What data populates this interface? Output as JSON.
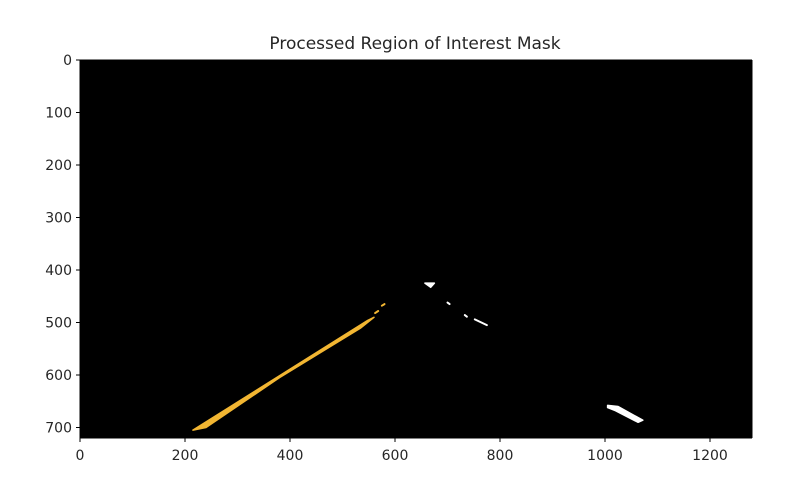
{
  "chart_data": {
    "type": "image",
    "title": "Processed Region of Interest Mask",
    "xlabel": "",
    "ylabel": "",
    "image_size": [
      1280,
      720
    ],
    "xlim": [
      0,
      1280
    ],
    "ylim": [
      720,
      0
    ],
    "x_ticks": [
      0,
      200,
      400,
      600,
      800,
      1000,
      1200
    ],
    "y_ticks": [
      0,
      100,
      200,
      300,
      400,
      500,
      600,
      700
    ],
    "background_color": "#000000",
    "mask_features": [
      {
        "name": "left-lane-line",
        "color": "#f2b632",
        "points": [
          [
            215,
            705
          ],
          [
            240,
            700
          ],
          [
            380,
            605
          ],
          [
            535,
            510
          ],
          [
            560,
            490
          ],
          [
            548,
            496
          ]
        ]
      },
      {
        "name": "left-lane-dash-1",
        "color": "#f2b632",
        "points": [
          [
            562,
            482
          ],
          [
            568,
            478
          ]
        ]
      },
      {
        "name": "left-lane-dash-2",
        "color": "#f2b632",
        "points": [
          [
            575,
            468
          ],
          [
            580,
            465
          ]
        ]
      },
      {
        "name": "right-lane-top",
        "color": "#ffffff",
        "points": [
          [
            657,
            425
          ],
          [
            675,
            425
          ],
          [
            668,
            433
          ]
        ]
      },
      {
        "name": "right-lane-dot-1",
        "color": "#ffffff",
        "points": [
          [
            700,
            462
          ],
          [
            704,
            465
          ]
        ]
      },
      {
        "name": "right-lane-dot-2",
        "color": "#ffffff",
        "points": [
          [
            733,
            486
          ],
          [
            737,
            489
          ]
        ]
      },
      {
        "name": "right-lane-dash",
        "color": "#ffffff",
        "points": [
          [
            752,
            494
          ],
          [
            775,
            505
          ]
        ]
      },
      {
        "name": "right-lane-bottom",
        "color": "#ffffff",
        "points": [
          [
            1005,
            658
          ],
          [
            1025,
            660
          ],
          [
            1072,
            686
          ],
          [
            1063,
            690
          ],
          [
            1020,
            668
          ],
          [
            1005,
            662
          ]
        ]
      }
    ]
  }
}
